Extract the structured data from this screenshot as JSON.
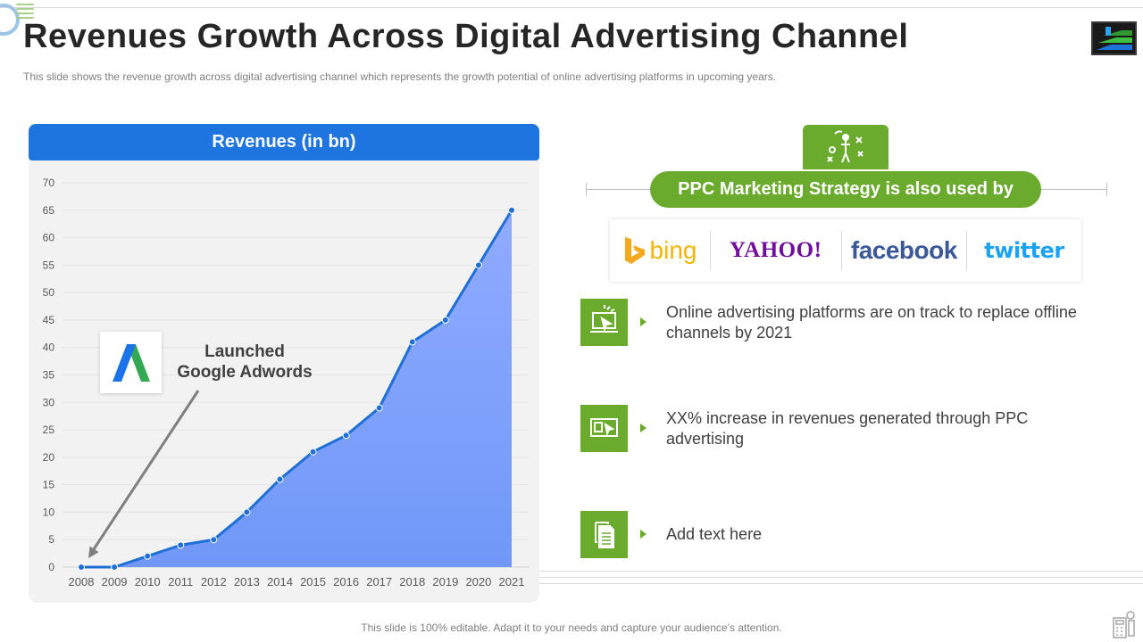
{
  "title": "Revenues Growth Across Digital Advertising Channel",
  "subtitle": "This slide shows the revenue  growth across digital advertising  channel which represents the growth  potential of online advertising  platforms in upcoming years.",
  "chart_header": "Revenues (in bn)",
  "annotation": {
    "line1": "Launched",
    "line2": "Google Adwords"
  },
  "ppc": {
    "heading": "PPC Marketing Strategy is also used by",
    "brands": [
      "bing",
      "YAHOO!",
      "facebook",
      "twitter"
    ]
  },
  "points": [
    {
      "icon": "laptop-cursor-icon",
      "text": "Online advertising platforms are on track to replace offline channels by 2021"
    },
    {
      "icon": "monitor-click-icon",
      "text": "XX% increase in revenues generated through PPC advertising"
    },
    {
      "icon": "documents-icon",
      "text": "Add text here"
    }
  ],
  "footer": "This slide is 100% editable. Adapt it to your needs and capture your audience’s attention.",
  "colors": {
    "header_blue": "#1f75e0",
    "line_blue": "#1e6fd6",
    "area_top": "#90abff",
    "area_bottom": "#7098f8",
    "accent_green": "#6aab2e"
  },
  "chart_data": {
    "type": "area",
    "title": "Revenues (in bn)",
    "x": [
      "2008",
      "2009",
      "2010",
      "2011",
      "2012",
      "2013",
      "2014",
      "2015",
      "2016",
      "2017",
      "2018",
      "2019",
      "2020",
      "2021"
    ],
    "values": [
      0,
      0,
      2,
      4,
      5,
      10,
      16,
      21,
      24,
      29,
      41,
      45,
      55,
      65
    ],
    "ylim": [
      0,
      70
    ],
    "yticks": [
      0,
      5,
      10,
      15,
      20,
      25,
      30,
      35,
      40,
      45,
      50,
      55,
      60,
      65,
      70
    ],
    "grid": true,
    "annotation": {
      "text": "Launched Google Adwords",
      "target_x": "2008"
    }
  }
}
